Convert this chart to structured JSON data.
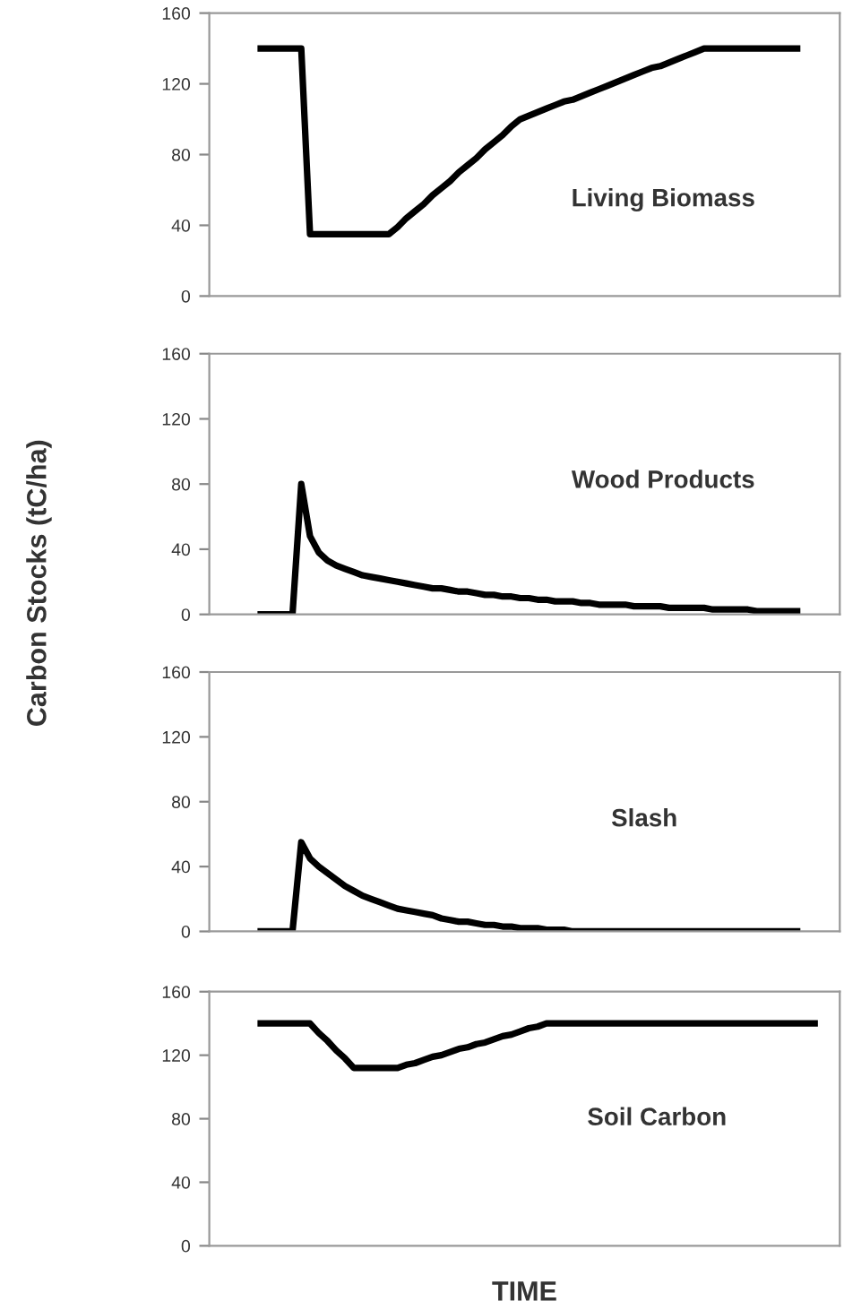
{
  "chart_data": [
    {
      "type": "line",
      "ylim": [
        0,
        160
      ],
      "yticks": [
        0,
        40,
        80,
        120,
        160
      ],
      "tick_labels": "y",
      "grid": false,
      "legend": false,
      "categories": [
        null,
        null,
        null,
        null,
        null,
        null,
        null,
        null,
        null,
        null,
        null,
        null,
        null,
        null,
        null,
        null,
        null,
        null,
        null,
        null,
        null,
        null,
        null,
        null,
        null,
        null,
        null,
        null,
        null,
        null,
        null,
        null,
        null,
        null,
        null,
        null,
        null,
        null,
        null,
        null,
        null,
        null,
        null,
        null,
        null,
        null,
        null,
        null,
        null,
        null,
        null,
        null,
        null,
        null,
        null,
        null,
        null,
        null,
        null,
        null,
        null,
        null,
        null,
        null,
        null,
        null,
        null,
        null,
        null,
        null,
        null,
        null
      ],
      "series": [
        {
          "name": "Living Biomass",
          "color": "#000000",
          "values": [
            null,
            null,
            null,
            null,
            null,
            140,
            140,
            140,
            140,
            140,
            140,
            35,
            35,
            35,
            35,
            35,
            35,
            35,
            35,
            35,
            35,
            39,
            44,
            48,
            52,
            57,
            61,
            65,
            70,
            74,
            78,
            83,
            87,
            91,
            96,
            100,
            102,
            104,
            106,
            108,
            110,
            111,
            113,
            115,
            117,
            119,
            121,
            123,
            125,
            127,
            129,
            130,
            132,
            134,
            136,
            138,
            140,
            140,
            140,
            140,
            140,
            140,
            140,
            140,
            140,
            140,
            140,
            140,
            null,
            null,
            null,
            null
          ]
        }
      ]
    },
    {
      "type": "line",
      "ylabel": "Carbon Stocks (tC/ha)",
      "ylim": [
        0,
        160
      ],
      "yticks": [
        0,
        40,
        80,
        120,
        160
      ],
      "tick_labels": "y",
      "grid": false,
      "legend": false,
      "categories": [
        null,
        null,
        null,
        null,
        null,
        null,
        null,
        null,
        null,
        null,
        null,
        null,
        null,
        null,
        null,
        null,
        null,
        null,
        null,
        null,
        null,
        null,
        null,
        null,
        null,
        null,
        null,
        null,
        null,
        null,
        null,
        null,
        null,
        null,
        null,
        null,
        null,
        null,
        null,
        null,
        null,
        null,
        null,
        null,
        null,
        null,
        null,
        null,
        null,
        null,
        null,
        null,
        null,
        null,
        null,
        null,
        null,
        null,
        null,
        null,
        null,
        null,
        null,
        null,
        null,
        null,
        null,
        null,
        null,
        null,
        null,
        null
      ],
      "series": [
        {
          "name": "Wood Products",
          "color": "#000000",
          "values": [
            null,
            null,
            null,
            null,
            null,
            0,
            0,
            0,
            0,
            0,
            80,
            48,
            38,
            33,
            30,
            28,
            26,
            24,
            23,
            22,
            21,
            20,
            19,
            18,
            17,
            16,
            16,
            15,
            14,
            14,
            13,
            12,
            12,
            11,
            11,
            10,
            10,
            9,
            9,
            8,
            8,
            8,
            7,
            7,
            6,
            6,
            6,
            6,
            5,
            5,
            5,
            5,
            4,
            4,
            4,
            4,
            4,
            3,
            3,
            3,
            3,
            3,
            2,
            2,
            2,
            2,
            2,
            2,
            null,
            null,
            null,
            null
          ]
        }
      ]
    },
    {
      "type": "line",
      "ylim": [
        0,
        160
      ],
      "yticks": [
        0,
        40,
        80,
        120,
        160
      ],
      "tick_labels": "y",
      "grid": false,
      "legend": false,
      "categories": [
        null,
        null,
        null,
        null,
        null,
        null,
        null,
        null,
        null,
        null,
        null,
        null,
        null,
        null,
        null,
        null,
        null,
        null,
        null,
        null,
        null,
        null,
        null,
        null,
        null,
        null,
        null,
        null,
        null,
        null,
        null,
        null,
        null,
        null,
        null,
        null,
        null,
        null,
        null,
        null,
        null,
        null,
        null,
        null,
        null,
        null,
        null,
        null,
        null,
        null,
        null,
        null,
        null,
        null,
        null,
        null,
        null,
        null,
        null,
        null,
        null,
        null,
        null,
        null,
        null,
        null,
        null,
        null,
        null,
        null,
        null,
        null
      ],
      "series": [
        {
          "name": "Slash",
          "color": "#000000",
          "values": [
            null,
            null,
            null,
            null,
            null,
            0,
            0,
            0,
            0,
            0,
            55,
            45,
            40,
            36,
            32,
            28,
            25,
            22,
            20,
            18,
            16,
            14,
            13,
            12,
            11,
            10,
            8,
            7,
            6,
            6,
            5,
            4,
            4,
            3,
            3,
            2,
            2,
            2,
            1,
            1,
            1,
            0,
            0,
            0,
            0,
            0,
            0,
            0,
            0,
            0,
            0,
            0,
            0,
            0,
            0,
            0,
            0,
            0,
            0,
            0,
            0,
            0,
            0,
            0,
            0,
            0,
            0,
            0,
            null,
            null,
            null,
            null
          ]
        }
      ]
    },
    {
      "type": "line",
      "xlabel": "TIME",
      "ylim": [
        0,
        160
      ],
      "yticks": [
        0,
        40,
        80,
        120,
        160
      ],
      "tick_labels": "y",
      "grid": false,
      "legend": false,
      "categories": [
        null,
        null,
        null,
        null,
        null,
        null,
        null,
        null,
        null,
        null,
        null,
        null,
        null,
        null,
        null,
        null,
        null,
        null,
        null,
        null,
        null,
        null,
        null,
        null,
        null,
        null,
        null,
        null,
        null,
        null,
        null,
        null,
        null,
        null,
        null,
        null,
        null,
        null,
        null,
        null,
        null,
        null,
        null,
        null,
        null,
        null,
        null,
        null,
        null,
        null,
        null,
        null,
        null,
        null,
        null,
        null,
        null,
        null,
        null,
        null,
        null,
        null,
        null,
        null,
        null,
        null,
        null,
        null,
        null,
        null,
        null,
        null
      ],
      "series": [
        {
          "name": "Soil Carbon",
          "color": "#000000",
          "values": [
            null,
            null,
            null,
            null,
            null,
            140,
            140,
            140,
            140,
            140,
            140,
            140,
            134,
            129,
            123,
            118,
            112,
            112,
            112,
            112,
            112,
            112,
            114,
            115,
            117,
            119,
            120,
            122,
            124,
            125,
            127,
            128,
            130,
            132,
            133,
            135,
            137,
            138,
            140,
            140,
            140,
            140,
            140,
            140,
            140,
            140,
            140,
            140,
            140,
            140,
            140,
            140,
            140,
            140,
            140,
            140,
            140,
            140,
            140,
            140,
            140,
            140,
            140,
            140,
            140,
            140,
            140,
            140,
            140,
            140,
            null,
            null
          ]
        }
      ]
    }
  ]
}
